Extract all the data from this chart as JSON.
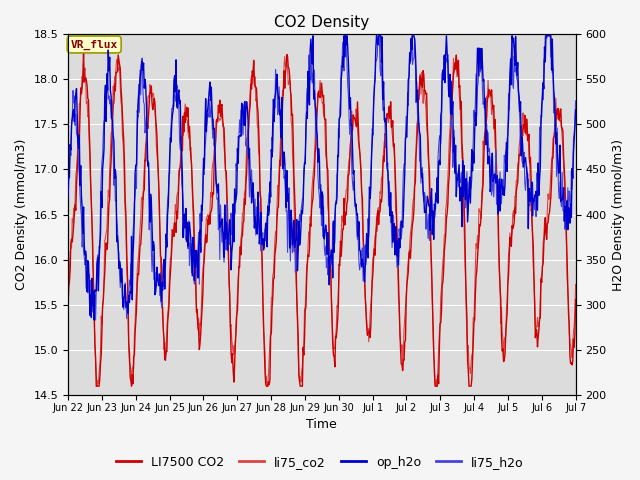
{
  "title": "CO2 Density",
  "xlabel": "Time",
  "ylabel_left": "CO2 Density (mmol/m3)",
  "ylabel_right": "H2O Density (mmol/m3)",
  "ylim_left": [
    14.5,
    18.5
  ],
  "ylim_right": [
    200,
    600
  ],
  "yticks_left": [
    14.5,
    15.0,
    15.5,
    16.0,
    16.5,
    17.0,
    17.5,
    18.0,
    18.5
  ],
  "yticks_right": [
    200,
    250,
    300,
    350,
    400,
    450,
    500,
    550,
    600
  ],
  "xtick_labels": [
    "Jun 22",
    "Jun 23",
    "Jun 24",
    "Jun 25",
    "Jun 26",
    "Jun 27",
    "Jun 28",
    "Jun 29",
    "Jun 30",
    "Jul 1",
    "Jul 2",
    "Jul 3",
    "Jul 4",
    "Jul 5",
    "Jul 6",
    "Jul 7"
  ],
  "legend_labels": [
    "LI7500 CO2",
    "li75_co2",
    "op_h2o",
    "li75_h2o"
  ],
  "co2_color1": "#cc0000",
  "co2_color2": "#dd4444",
  "h2o_color1": "#0000cc",
  "h2o_color2": "#4444dd",
  "vr_flux_box_color": "#ffffcc",
  "vr_flux_border_color": "#999900",
  "vr_flux_text_color": "#880000",
  "plot_bg_color": "#dcdcdc",
  "fig_bg_color": "#f5f5f5",
  "grid_color": "#ffffff",
  "title_fontsize": 11,
  "axis_fontsize": 9,
  "tick_fontsize": 8,
  "legend_fontsize": 9,
  "figwidth": 6.4,
  "figheight": 4.8,
  "dpi": 100
}
